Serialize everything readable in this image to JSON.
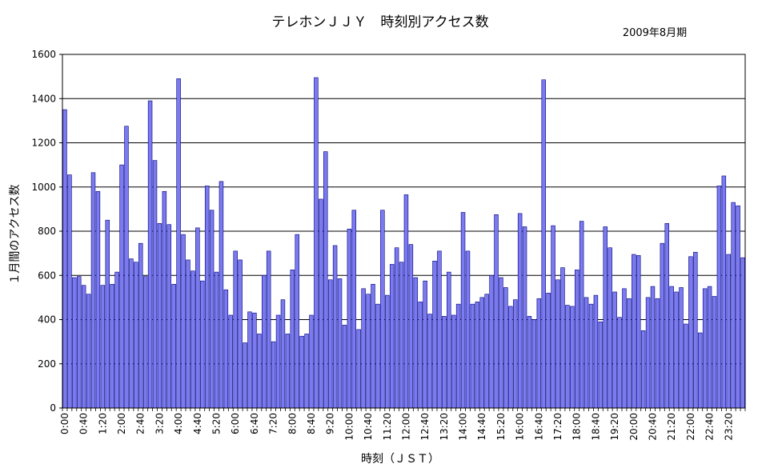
{
  "chart_data": {
    "type": "bar",
    "title": "テレホンＪＪＹ　時刻別アクセス数",
    "subtitle": "2009年8月期",
    "xlabel": "時刻（ＪＳＴ）",
    "ylabel": "１月間のアクセス数",
    "ylim": [
      0,
      1600
    ],
    "yticks": [
      0,
      200,
      400,
      600,
      800,
      1000,
      1200,
      1400,
      1600
    ],
    "grid": true,
    "bar_color": "#7b7bef",
    "bar_edge_color": "#000080",
    "x_tick_labels": [
      "0:00",
      "0:40",
      "1:20",
      "2:00",
      "2:40",
      "3:20",
      "4:00",
      "4:40",
      "5:20",
      "6:00",
      "6:40",
      "7:20",
      "8:00",
      "8:40",
      "9:20",
      "10:00",
      "10:40",
      "11:20",
      "12:00",
      "12:40",
      "13:20",
      "14:00",
      "14:40",
      "15:20",
      "16:00",
      "16:40",
      "17:20",
      "18:00",
      "18:40",
      "19:20",
      "20:00",
      "20:40",
      "21:20",
      "22:00",
      "22:40",
      "23:20"
    ],
    "x_tick_every": 4,
    "interval_minutes": 10,
    "values": [
      1350,
      1055,
      590,
      595,
      555,
      515,
      1065,
      980,
      555,
      850,
      560,
      615,
      1100,
      1275,
      675,
      660,
      745,
      595,
      1390,
      1120,
      835,
      980,
      830,
      560,
      1490,
      785,
      670,
      620,
      815,
      575,
      1005,
      895,
      615,
      1025,
      535,
      420,
      710,
      670,
      295,
      435,
      430,
      335,
      600,
      710,
      300,
      420,
      490,
      335,
      625,
      785,
      325,
      335,
      420,
      1495,
      945,
      1160,
      580,
      735,
      585,
      375,
      810,
      895,
      355,
      540,
      515,
      560,
      470,
      895,
      510,
      650,
      725,
      660,
      965,
      740,
      590,
      480,
      575,
      425,
      665,
      710,
      415,
      615,
      420,
      470,
      885,
      710,
      470,
      480,
      500,
      515,
      600,
      875,
      590,
      545,
      460,
      490,
      880,
      820,
      415,
      400,
      495,
      1485,
      520,
      825,
      580,
      635,
      465,
      460,
      625,
      845,
      500,
      470,
      510,
      390,
      820,
      725,
      525,
      410,
      540,
      495,
      695,
      690,
      350,
      500,
      550,
      495,
      745,
      835,
      550,
      525,
      545,
      380,
      685,
      705,
      340,
      540,
      550,
      505,
      1005,
      1050,
      695,
      930,
      915,
      680
    ]
  }
}
